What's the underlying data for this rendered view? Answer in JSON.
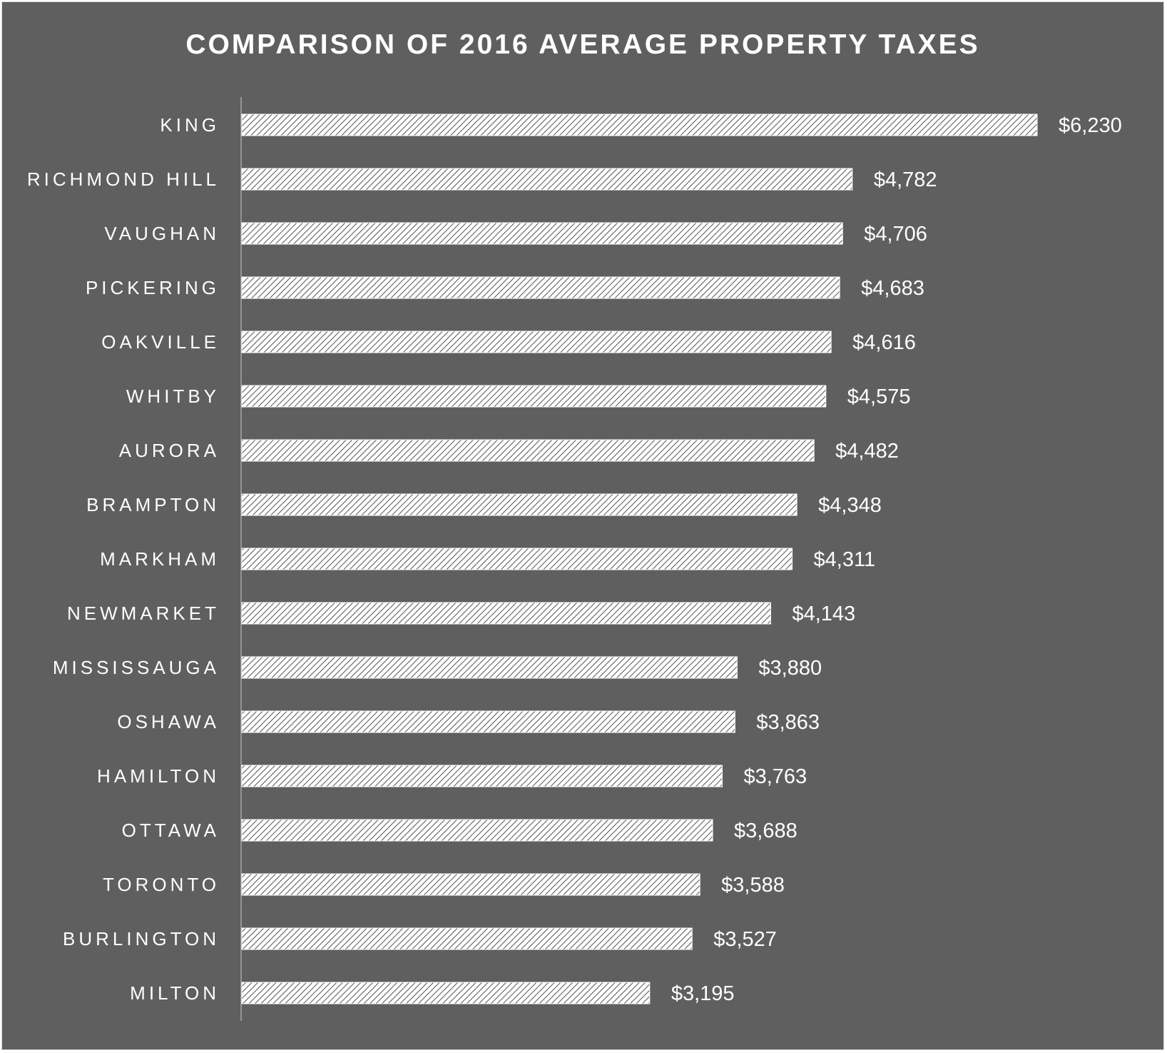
{
  "chart_data": {
    "type": "bar",
    "orientation": "horizontal",
    "title": "COMPARISON OF 2016 AVERAGE PROPERTY TAXES",
    "categories": [
      "KING",
      "RICHMOND HILL",
      "VAUGHAN",
      "PICKERING",
      "OAKVILLE",
      "WHITBY",
      "AURORA",
      "BRAMPTON",
      "MARKHAM",
      "NEWMARKET",
      "MISSISSAUGA",
      "OSHAWA",
      "HAMILTON",
      "OTTAWA",
      "TORONTO",
      "BURLINGTON",
      "MILTON"
    ],
    "values": [
      6230,
      4782,
      4706,
      4683,
      4616,
      4575,
      4482,
      4348,
      4311,
      4143,
      3880,
      3863,
      3763,
      3688,
      3588,
      3527,
      3195
    ],
    "value_labels": [
      "$6,230",
      "$4,782",
      "$4,706",
      "$4,683",
      "$4,616",
      "$4,575",
      "$4,482",
      "$4,348",
      "$4,311",
      "$4,143",
      "$3,880",
      "$3,863",
      "$3,763",
      "$3,688",
      "$3,588",
      "$3,527",
      "$3,195"
    ],
    "xlim": [
      0,
      6230
    ],
    "grid": false,
    "legend": "none",
    "colors": {
      "background": "#5f5f5f",
      "bar_fill": "#ffffff",
      "bar_hatch": "#5f5f5f",
      "text": "#ffffff",
      "axis": "#a6a6a6"
    }
  }
}
